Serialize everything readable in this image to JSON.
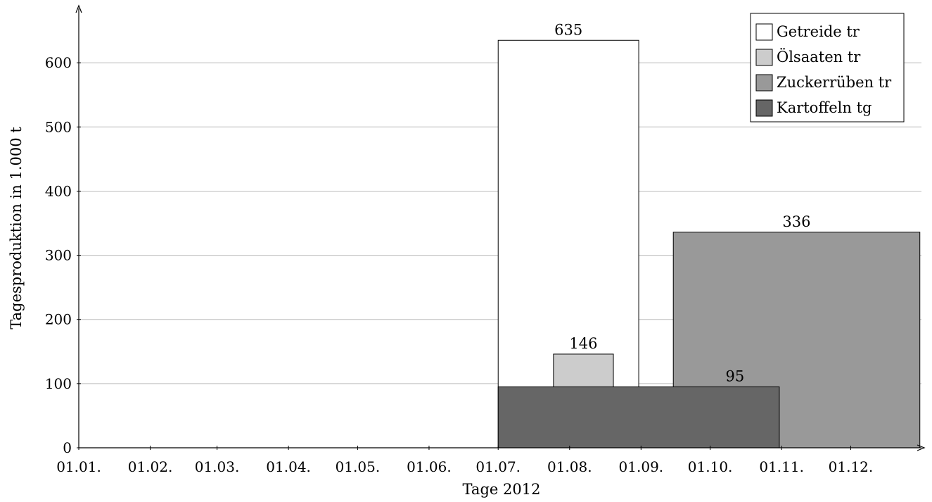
{
  "chart_data": {
    "type": "bar",
    "title": "",
    "xlabel": "Tage 2012",
    "ylabel": "Tagesproduktion in 1.000 t",
    "ylim": [
      0,
      680
    ],
    "yticks": [
      0,
      100,
      200,
      300,
      400,
      500,
      600
    ],
    "x_tick_labels": [
      "01.01.",
      "01.02.",
      "01.03.",
      "01.04.",
      "01.05.",
      "01.06.",
      "01.07.",
      "01.08.",
      "01.09.",
      "01.10.",
      "01.11.",
      "01.12."
    ],
    "grid": "horizontal",
    "legend_position": "top-right",
    "series": [
      {
        "name": "Getreide tr",
        "color": "#ffffff",
        "x_start": "2012-07-01",
        "x_end": "2012-08-31",
        "value": 635,
        "label": "635"
      },
      {
        "name": "Ölsaaten tr",
        "color": "#cccccc",
        "x_start": "2012-07-25",
        "x_end": "2012-08-20",
        "value": 146,
        "label": "146"
      },
      {
        "name": "Zuckerrüben tr",
        "color": "#999999",
        "x_start": "2012-09-15",
        "x_end": "2012-12-31",
        "value": 336,
        "label": "336"
      },
      {
        "name": "Kartoffeln tg",
        "color": "#666666",
        "x_start": "2012-07-01",
        "x_end": "2012-10-31",
        "value": 95,
        "label": "95"
      }
    ],
    "draw_order": [
      "Getreide tr",
      "Zuckerrüben tr",
      "Ölsaaten tr",
      "Kartoffeln tg"
    ]
  }
}
